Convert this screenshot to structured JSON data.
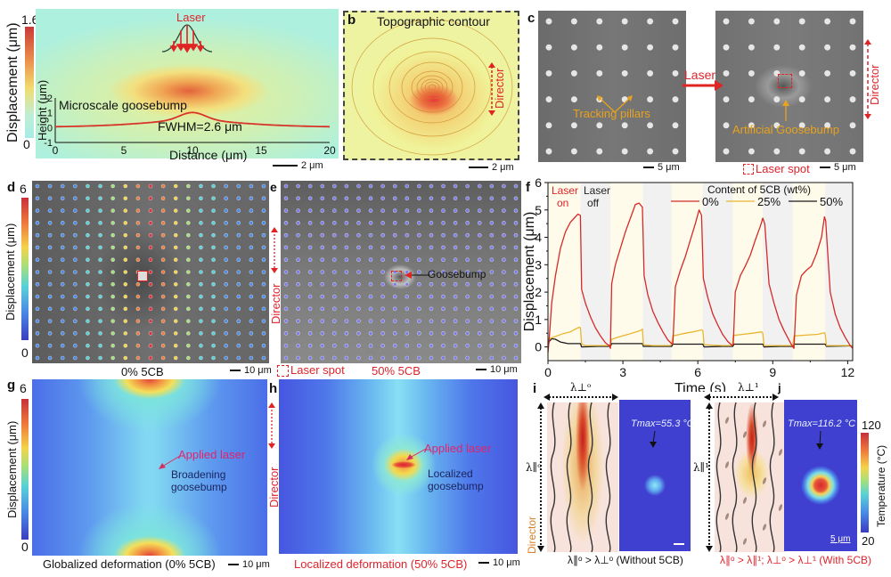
{
  "figure": {
    "panel_labels": [
      "a",
      "b",
      "c",
      "d",
      "e",
      "f",
      "g",
      "h",
      "i",
      "j"
    ]
  },
  "panel_a": {
    "colorbar_max": "1.6",
    "colorbar_min": "0",
    "colorbar_label": "Displacement (μm)",
    "laser_label": "Laser",
    "inset_title": "Microscale goosebump",
    "fwhm_label": "FWHM=2.6 μm",
    "xlabel": "Distance (μm)",
    "ylabel": "Height (μm)",
    "xticks": [
      "0",
      "5",
      "10",
      "15",
      "20"
    ],
    "yticks": [
      "2",
      "1",
      "0",
      "-1"
    ],
    "scalebar": "2 μm",
    "colors": {
      "bg": "#aef0de",
      "peak": "#d9412b",
      "mid": "#f2d96a"
    }
  },
  "panel_b": {
    "title": "Topographic contour",
    "director_label": "Director",
    "scalebar": "2 μm"
  },
  "panel_c": {
    "laser_arrow_label": "Laser",
    "tracking_label": "Tracking pillars",
    "goosebump_label": "Artificial Goosebump",
    "director_label": "Director",
    "laser_spot_label": "Laser spot",
    "scalebar_left": "5 μm",
    "scalebar_right": "5 μm"
  },
  "panel_d": {
    "colorbar_max": "6",
    "colorbar_min": "0",
    "colorbar_label": "Displacement (μm)",
    "caption": "0% 5CB",
    "scalebar": "10 μm"
  },
  "panel_e": {
    "director_label": "Director",
    "goosebump_label": "Goosebump",
    "laser_spot_label": "Laser spot",
    "caption": "50% 5CB",
    "scalebar": "10 μm"
  },
  "chart_data": {
    "type": "line",
    "title": "",
    "xlabel": "Time (s)",
    "ylabel": "Displacement (μm)",
    "xlim": [
      0,
      12.2
    ],
    "ylim": [
      -0.5,
      6
    ],
    "xticks": [
      0,
      3,
      6,
      9,
      12
    ],
    "yticks": [
      0,
      1,
      2,
      3,
      4,
      5,
      6
    ],
    "grid": false,
    "legend_title": "Content of 5CB (wt%)",
    "legend_position": "top-right",
    "annotations": [
      {
        "text": "Laser on",
        "color": "#e0242b"
      },
      {
        "text": "Laser off",
        "color": "#222222"
      }
    ],
    "laser_on_intervals": [
      [
        0,
        1.3
      ],
      [
        2.5,
        3.8
      ],
      [
        4.95,
        6.2
      ],
      [
        7.4,
        8.6
      ],
      [
        9.8,
        11.1
      ]
    ],
    "series": [
      {
        "name": "0%",
        "color": "#d62a2a",
        "x": [
          0,
          0.05,
          0.15,
          0.3,
          0.5,
          0.7,
          0.9,
          1.05,
          1.2,
          1.3,
          1.35,
          1.5,
          1.7,
          1.9,
          2.1,
          2.3,
          2.45,
          2.5,
          2.55,
          2.7,
          2.9,
          3.1,
          3.3,
          3.5,
          3.65,
          3.78,
          3.85,
          4.0,
          4.2,
          4.4,
          4.6,
          4.8,
          4.95,
          5.0,
          5.1,
          5.3,
          5.5,
          5.7,
          5.9,
          6.05,
          6.15,
          6.22,
          6.4,
          6.6,
          6.8,
          7.0,
          7.2,
          7.38,
          7.42,
          7.5,
          7.7,
          7.9,
          8.1,
          8.3,
          8.5,
          8.6,
          8.68,
          8.85,
          9.05,
          9.25,
          9.45,
          9.65,
          9.8,
          9.85,
          9.95,
          10.15,
          10.35,
          10.55,
          10.75,
          10.95,
          11.07,
          11.12,
          11.3,
          11.5,
          11.7,
          11.9,
          12.1,
          12.2
        ],
        "y": [
          -0.2,
          0.3,
          1.6,
          2.6,
          3.6,
          4.2,
          4.55,
          4.7,
          4.85,
          4.8,
          2.1,
          1.6,
          1.1,
          0.7,
          0.4,
          0.15,
          0.05,
          -0.05,
          2.3,
          3.0,
          3.6,
          4.2,
          4.7,
          5.2,
          5.25,
          5.1,
          2.6,
          1.9,
          1.3,
          0.9,
          0.55,
          0.25,
          0.12,
          0.1,
          2.2,
          2.8,
          3.3,
          3.9,
          4.5,
          5.0,
          4.8,
          2.5,
          1.8,
          1.2,
          0.8,
          0.45,
          0.2,
          0.05,
          0.1,
          2.0,
          2.6,
          2.95,
          3.35,
          3.9,
          4.4,
          4.7,
          4.5,
          2.3,
          1.6,
          1.0,
          0.6,
          0.25,
          0.0,
          -0.05,
          1.9,
          2.6,
          2.8,
          2.95,
          3.4,
          4.0,
          4.75,
          4.6,
          2.0,
          1.2,
          0.7,
          0.35,
          0.05,
          -0.05
        ]
      },
      {
        "name": "25%",
        "color": "#e8b630",
        "x": [
          0,
          0.05,
          0.3,
          0.6,
          0.9,
          1.1,
          1.25,
          1.3,
          1.35,
          1.5,
          2.0,
          2.45,
          2.5,
          2.55,
          2.9,
          3.3,
          3.7,
          3.78,
          3.82,
          4.2,
          4.9,
          4.95,
          5.0,
          5.4,
          5.8,
          6.15,
          6.2,
          6.25,
          7.0,
          7.38,
          7.42,
          7.8,
          8.2,
          8.55,
          8.6,
          8.65,
          9.5,
          9.8,
          9.85,
          10.3,
          10.8,
          11.07,
          11.1,
          11.15,
          12.2
        ],
        "y": [
          0.0,
          0.3,
          0.38,
          0.48,
          0.55,
          0.65,
          0.72,
          0.7,
          0.1,
          0.05,
          0.05,
          0.05,
          0.1,
          0.28,
          0.38,
          0.48,
          0.6,
          0.65,
          0.08,
          0.05,
          0.05,
          0.1,
          0.4,
          0.48,
          0.55,
          0.62,
          0.6,
          0.08,
          0.05,
          0.05,
          0.42,
          0.46,
          0.5,
          0.55,
          0.5,
          0.05,
          0.05,
          0.05,
          0.4,
          0.43,
          0.46,
          0.52,
          0.45,
          0.05,
          0.05
        ]
      },
      {
        "name": "50%",
        "color": "#1a1a1a",
        "x": [
          0,
          0.05,
          0.15,
          0.3,
          0.5,
          0.8,
          1.1,
          1.3,
          1.35,
          2.0,
          2.5,
          2.55,
          3.0,
          3.78,
          3.82,
          4.5,
          4.95,
          5.0,
          5.5,
          6.2,
          6.25,
          7.0,
          7.4,
          7.45,
          8.0,
          8.6,
          8.65,
          9.3,
          9.8,
          9.85,
          10.5,
          11.1,
          11.15,
          12.2
        ],
        "y": [
          0.0,
          0.2,
          0.3,
          0.28,
          0.18,
          0.12,
          0.12,
          0.12,
          0.0,
          0.02,
          0.02,
          0.12,
          0.12,
          0.12,
          0.02,
          0.02,
          0.02,
          0.1,
          0.1,
          0.1,
          0.0,
          0.02,
          0.02,
          0.1,
          0.1,
          0.1,
          0.0,
          0.02,
          0.02,
          0.1,
          0.1,
          0.1,
          0.02,
          0.04
        ]
      }
    ]
  },
  "panel_g": {
    "colorbar_max": "6",
    "colorbar_min": "0",
    "colorbar_label": "Displacement (μm)",
    "applied_laser": "Applied laser",
    "annotation": "Broadening goosebump",
    "annotation_line1": "Broadening",
    "annotation_line2": "goosebump",
    "caption": "Globalized deformation (0% 5CB)",
    "scalebar": "10 μm"
  },
  "panel_h": {
    "director_label": "Director",
    "applied_laser": "Applied laser",
    "annotation_line1": "Localized",
    "annotation_line2": "goosebump",
    "caption": "Localized deformation (50% 5CB)",
    "scalebar": "10 μm"
  },
  "panel_i": {
    "lambda_perp": "λ⊥ᵒ",
    "lambda_par": "λ∥ᵒ",
    "director_label": "Director",
    "tmax_label": "Tmax=55.3 °C",
    "caption": "λ∥ᵒ > λ⊥ᵒ (Without 5CB)"
  },
  "panel_j": {
    "lambda_perp": "λ⊥¹",
    "lambda_par": "λ∥¹",
    "tmax_label": "Tmax=116.2 °C",
    "caption": "λ∥ᵒ > λ∥¹; λ⊥ᵒ > λ⊥¹ (With 5CB)",
    "colorbar_max": "120",
    "colorbar_min": "20",
    "colorbar_label": "Temperature (°C)",
    "scalebar": "5 μm"
  }
}
